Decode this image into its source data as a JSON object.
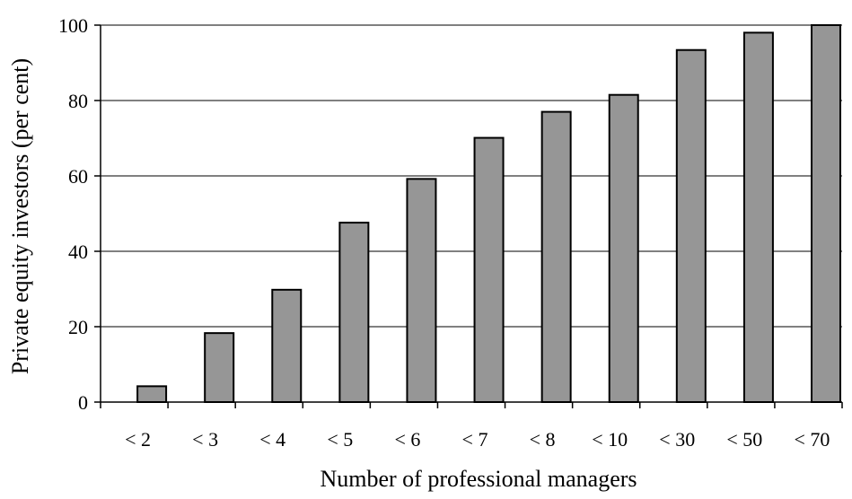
{
  "chart_data": {
    "type": "bar",
    "categories": [
      "< 2",
      "< 3",
      "< 4",
      "< 5",
      "< 6",
      "< 7",
      "< 8",
      "< 10",
      "< 30",
      "< 50",
      "< 70"
    ],
    "values": [
      4.2,
      18.3,
      29.8,
      47.6,
      59.2,
      70.1,
      77.0,
      81.5,
      93.4,
      98.0,
      100.0
    ],
    "xlabel": "Number of professional managers",
    "ylabel": "Private equity investors (per cent)",
    "ylim": [
      0,
      100
    ],
    "yticks": [
      0,
      20,
      40,
      60,
      80,
      100
    ],
    "grid": "horizontal",
    "legend": "none",
    "bar_color": "#969696",
    "bar_edge_color": "#000000"
  }
}
